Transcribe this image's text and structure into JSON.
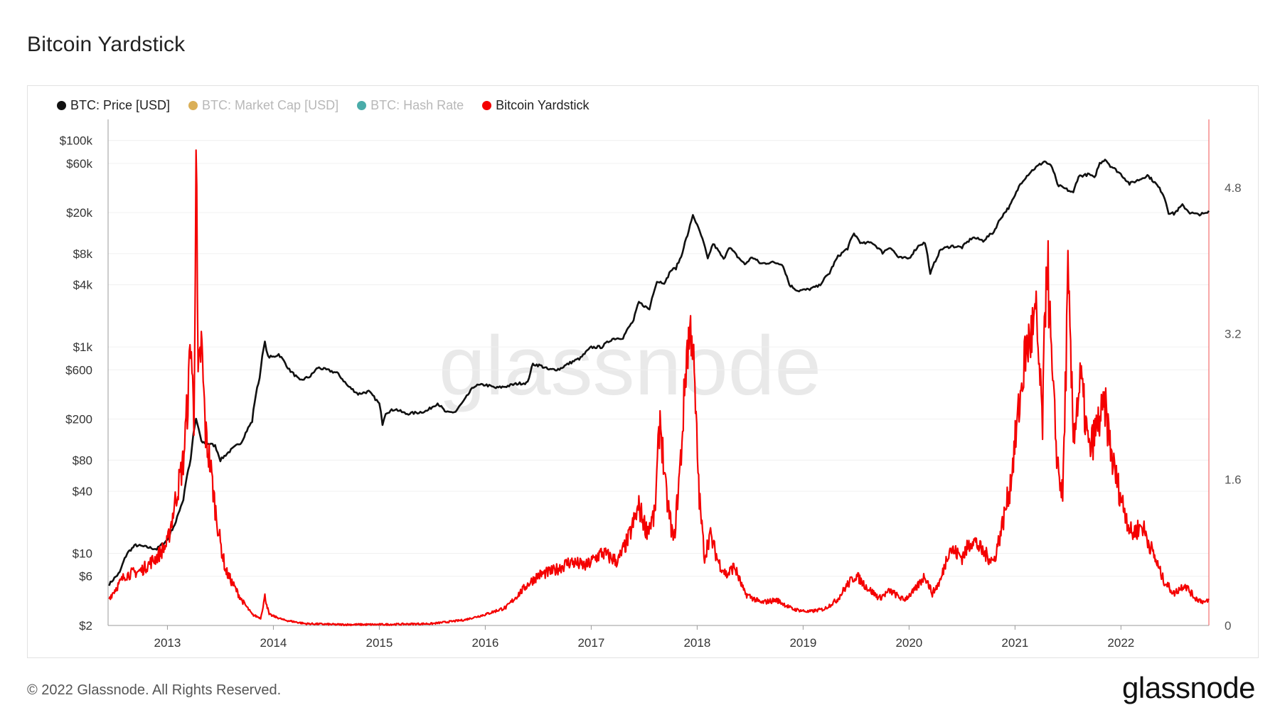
{
  "page": {
    "title": "Bitcoin Yardstick",
    "footer": "© 2022 Glassnode. All Rights Reserved.",
    "brand": "glassnode",
    "watermark": "glassnode"
  },
  "legend": [
    {
      "label": "BTC: Price [USD]",
      "color": "#111111",
      "active": true
    },
    {
      "label": "BTC: Market Cap [USD]",
      "color": "#d4a13a",
      "active": false
    },
    {
      "label": "BTC: Hash Rate",
      "color": "#2a9d9a",
      "active": false
    },
    {
      "label": "Bitcoin Yardstick",
      "color": "#f40000",
      "active": true
    }
  ],
  "chart_data": {
    "type": "line",
    "x_ticks": [
      "2013",
      "2014",
      "2015",
      "2016",
      "2017",
      "2018",
      "2019",
      "2020",
      "2021",
      "2022"
    ],
    "x_range": [
      2012.44,
      2022.83
    ],
    "y_left": {
      "scale": "log",
      "range": [
        2,
        160000
      ],
      "ticks": [
        {
          "value": 100000,
          "label": "$100k"
        },
        {
          "value": 60000,
          "label": "$60k"
        },
        {
          "value": 20000,
          "label": "$20k"
        },
        {
          "value": 8000,
          "label": "$8k"
        },
        {
          "value": 4000,
          "label": "$4k"
        },
        {
          "value": 1000,
          "label": "$1k"
        },
        {
          "value": 600,
          "label": "$600"
        },
        {
          "value": 200,
          "label": "$200"
        },
        {
          "value": 80,
          "label": "$80"
        },
        {
          "value": 40,
          "label": "$40"
        },
        {
          "value": 10,
          "label": "$10"
        },
        {
          "value": 6,
          "label": "$6"
        },
        {
          "value": 2,
          "label": "$2"
        }
      ]
    },
    "y_right": {
      "scale": "linear",
      "range": [
        0,
        5.55
      ],
      "ticks": [
        {
          "value": 4.8,
          "label": "4.8"
        },
        {
          "value": 3.2,
          "label": "3.2"
        },
        {
          "value": 1.6,
          "label": "1.6"
        },
        {
          "value": 0,
          "label": "0"
        }
      ]
    },
    "series": [
      {
        "name": "BTC: Price [USD]",
        "color": "#111111",
        "axis": "left",
        "points": [
          [
            2012.45,
            5
          ],
          [
            2012.55,
            6.5
          ],
          [
            2012.62,
            10
          ],
          [
            2012.7,
            12
          ],
          [
            2012.8,
            11.5
          ],
          [
            2012.9,
            11
          ],
          [
            2013.0,
            13.5
          ],
          [
            2013.08,
            20
          ],
          [
            2013.15,
            33
          ],
          [
            2013.22,
            80
          ],
          [
            2013.27,
            200
          ],
          [
            2013.32,
            120
          ],
          [
            2013.4,
            115
          ],
          [
            2013.45,
            110
          ],
          [
            2013.5,
            80
          ],
          [
            2013.55,
            90
          ],
          [
            2013.6,
            100
          ],
          [
            2013.7,
            120
          ],
          [
            2013.8,
            190
          ],
          [
            2013.87,
            500
          ],
          [
            2013.92,
            1100
          ],
          [
            2013.95,
            800
          ],
          [
            2014.0,
            800
          ],
          [
            2014.05,
            850
          ],
          [
            2014.15,
            600
          ],
          [
            2014.25,
            470
          ],
          [
            2014.35,
            520
          ],
          [
            2014.42,
            630
          ],
          [
            2014.5,
            600
          ],
          [
            2014.6,
            560
          ],
          [
            2014.7,
            420
          ],
          [
            2014.8,
            350
          ],
          [
            2014.9,
            370
          ],
          [
            2015.0,
            280
          ],
          [
            2015.03,
            180
          ],
          [
            2015.06,
            230
          ],
          [
            2015.15,
            250
          ],
          [
            2015.25,
            225
          ],
          [
            2015.35,
            230
          ],
          [
            2015.45,
            240
          ],
          [
            2015.55,
            285
          ],
          [
            2015.63,
            230
          ],
          [
            2015.72,
            235
          ],
          [
            2015.8,
            300
          ],
          [
            2015.9,
            420
          ],
          [
            2016.0,
            430
          ],
          [
            2016.1,
            400
          ],
          [
            2016.2,
            415
          ],
          [
            2016.3,
            440
          ],
          [
            2016.4,
            450
          ],
          [
            2016.45,
            680
          ],
          [
            2016.52,
            660
          ],
          [
            2016.6,
            600
          ],
          [
            2016.7,
            610
          ],
          [
            2016.8,
            700
          ],
          [
            2016.9,
            780
          ],
          [
            2017.0,
            990
          ],
          [
            2017.1,
            1000
          ],
          [
            2017.2,
            1200
          ],
          [
            2017.3,
            1230
          ],
          [
            2017.4,
            1800
          ],
          [
            2017.45,
            2700
          ],
          [
            2017.5,
            2500
          ],
          [
            2017.55,
            2300
          ],
          [
            2017.62,
            4300
          ],
          [
            2017.7,
            4200
          ],
          [
            2017.75,
            5500
          ],
          [
            2017.8,
            5800
          ],
          [
            2017.85,
            7500
          ],
          [
            2017.92,
            13000
          ],
          [
            2017.96,
            19000
          ],
          [
            2018.0,
            15000
          ],
          [
            2018.05,
            11000
          ],
          [
            2018.1,
            7000
          ],
          [
            2018.15,
            10000
          ],
          [
            2018.2,
            8500
          ],
          [
            2018.25,
            7000
          ],
          [
            2018.3,
            9300
          ],
          [
            2018.38,
            7500
          ],
          [
            2018.45,
            6300
          ],
          [
            2018.52,
            7400
          ],
          [
            2018.6,
            6400
          ],
          [
            2018.7,
            6600
          ],
          [
            2018.8,
            6400
          ],
          [
            2018.87,
            4000
          ],
          [
            2018.95,
            3500
          ],
          [
            2019.05,
            3600
          ],
          [
            2019.15,
            3900
          ],
          [
            2019.25,
            5200
          ],
          [
            2019.33,
            7500
          ],
          [
            2019.42,
            9000
          ],
          [
            2019.48,
            12500
          ],
          [
            2019.55,
            10000
          ],
          [
            2019.65,
            10300
          ],
          [
            2019.75,
            8200
          ],
          [
            2019.82,
            9300
          ],
          [
            2019.9,
            7300
          ],
          [
            2020.0,
            7200
          ],
          [
            2020.1,
            9800
          ],
          [
            2020.15,
            10200
          ],
          [
            2020.2,
            5000
          ],
          [
            2020.3,
            8800
          ],
          [
            2020.4,
            9500
          ],
          [
            2020.5,
            9200
          ],
          [
            2020.6,
            11500
          ],
          [
            2020.7,
            10700
          ],
          [
            2020.8,
            13000
          ],
          [
            2020.87,
            18000
          ],
          [
            2020.95,
            23000
          ],
          [
            2021.0,
            29000
          ],
          [
            2021.05,
            38000
          ],
          [
            2021.15,
            50000
          ],
          [
            2021.28,
            63000
          ],
          [
            2021.35,
            55000
          ],
          [
            2021.4,
            37000
          ],
          [
            2021.5,
            33000
          ],
          [
            2021.55,
            31000
          ],
          [
            2021.6,
            45000
          ],
          [
            2021.7,
            47000
          ],
          [
            2021.75,
            43000
          ],
          [
            2021.8,
            60000
          ],
          [
            2021.85,
            66000
          ],
          [
            2021.9,
            57000
          ],
          [
            2022.0,
            47000
          ],
          [
            2022.08,
            38000
          ],
          [
            2022.18,
            42000
          ],
          [
            2022.25,
            46000
          ],
          [
            2022.33,
            38000
          ],
          [
            2022.4,
            30000
          ],
          [
            2022.45,
            20000
          ],
          [
            2022.5,
            19500
          ],
          [
            2022.58,
            23500
          ],
          [
            2022.65,
            20000
          ],
          [
            2022.72,
            19200
          ],
          [
            2022.8,
            19500
          ],
          [
            2022.83,
            20500
          ]
        ]
      },
      {
        "name": "Bitcoin Yardstick",
        "color": "#f40000",
        "axis": "right",
        "points": [
          [
            2012.45,
            0.3
          ],
          [
            2012.6,
            0.55
          ],
          [
            2012.75,
            0.6
          ],
          [
            2012.9,
            0.75
          ],
          [
            2013.0,
            0.9
          ],
          [
            2013.08,
            1.4
          ],
          [
            2013.15,
            1.8
          ],
          [
            2013.2,
            2.6
          ],
          [
            2013.22,
            3.2
          ],
          [
            2013.25,
            2.2
          ],
          [
            2013.27,
            5.3
          ],
          [
            2013.29,
            2.6
          ],
          [
            2013.32,
            3.1
          ],
          [
            2013.36,
            2.1
          ],
          [
            2013.4,
            1.8
          ],
          [
            2013.45,
            1.3
          ],
          [
            2013.5,
            0.9
          ],
          [
            2013.55,
            0.6
          ],
          [
            2013.62,
            0.45
          ],
          [
            2013.7,
            0.28
          ],
          [
            2013.8,
            0.12
          ],
          [
            2013.88,
            0.08
          ],
          [
            2013.92,
            0.32
          ],
          [
            2013.96,
            0.12
          ],
          [
            2014.1,
            0.06
          ],
          [
            2014.3,
            0.02
          ],
          [
            2014.6,
            0.01
          ],
          [
            2015.0,
            0.01
          ],
          [
            2015.5,
            0.02
          ],
          [
            2015.8,
            0.06
          ],
          [
            2016.0,
            0.12
          ],
          [
            2016.2,
            0.2
          ],
          [
            2016.4,
            0.45
          ],
          [
            2016.5,
            0.55
          ],
          [
            2016.65,
            0.6
          ],
          [
            2016.8,
            0.7
          ],
          [
            2016.95,
            0.65
          ],
          [
            2017.1,
            0.8
          ],
          [
            2017.25,
            0.7
          ],
          [
            2017.35,
            0.95
          ],
          [
            2017.45,
            1.3
          ],
          [
            2017.52,
            1.05
          ],
          [
            2017.6,
            1.2
          ],
          [
            2017.65,
            2.3
          ],
          [
            2017.7,
            1.5
          ],
          [
            2017.78,
            0.9
          ],
          [
            2017.85,
            1.9
          ],
          [
            2017.9,
            3.0
          ],
          [
            2017.95,
            3.3
          ],
          [
            2017.99,
            2.2
          ],
          [
            2018.02,
            1.4
          ],
          [
            2018.07,
            0.75
          ],
          [
            2018.12,
            1.0
          ],
          [
            2018.2,
            0.7
          ],
          [
            2018.28,
            0.55
          ],
          [
            2018.35,
            0.65
          ],
          [
            2018.45,
            0.35
          ],
          [
            2018.6,
            0.25
          ],
          [
            2018.75,
            0.28
          ],
          [
            2018.9,
            0.18
          ],
          [
            2019.05,
            0.15
          ],
          [
            2019.2,
            0.18
          ],
          [
            2019.32,
            0.28
          ],
          [
            2019.42,
            0.45
          ],
          [
            2019.5,
            0.55
          ],
          [
            2019.6,
            0.42
          ],
          [
            2019.72,
            0.3
          ],
          [
            2019.82,
            0.38
          ],
          [
            2019.95,
            0.28
          ],
          [
            2020.05,
            0.38
          ],
          [
            2020.15,
            0.55
          ],
          [
            2020.22,
            0.35
          ],
          [
            2020.3,
            0.5
          ],
          [
            2020.38,
            0.85
          ],
          [
            2020.5,
            0.75
          ],
          [
            2020.6,
            0.95
          ],
          [
            2020.7,
            0.8
          ],
          [
            2020.8,
            0.7
          ],
          [
            2020.88,
            1.1
          ],
          [
            2020.95,
            1.5
          ],
          [
            2021.02,
            2.2
          ],
          [
            2021.1,
            3.0
          ],
          [
            2021.2,
            3.35
          ],
          [
            2021.26,
            2.2
          ],
          [
            2021.3,
            4.2
          ],
          [
            2021.35,
            2.7
          ],
          [
            2021.4,
            1.8
          ],
          [
            2021.45,
            1.4
          ],
          [
            2021.5,
            3.75
          ],
          [
            2021.55,
            2.1
          ],
          [
            2021.62,
            2.7
          ],
          [
            2021.7,
            1.9
          ],
          [
            2021.78,
            2.2
          ],
          [
            2021.85,
            2.4
          ],
          [
            2021.92,
            1.8
          ],
          [
            2022.0,
            1.4
          ],
          [
            2022.1,
            1.0
          ],
          [
            2022.2,
            1.1
          ],
          [
            2022.3,
            0.8
          ],
          [
            2022.4,
            0.5
          ],
          [
            2022.5,
            0.35
          ],
          [
            2022.6,
            0.45
          ],
          [
            2022.7,
            0.3
          ],
          [
            2022.8,
            0.25
          ],
          [
            2022.83,
            0.28
          ]
        ]
      }
    ]
  }
}
